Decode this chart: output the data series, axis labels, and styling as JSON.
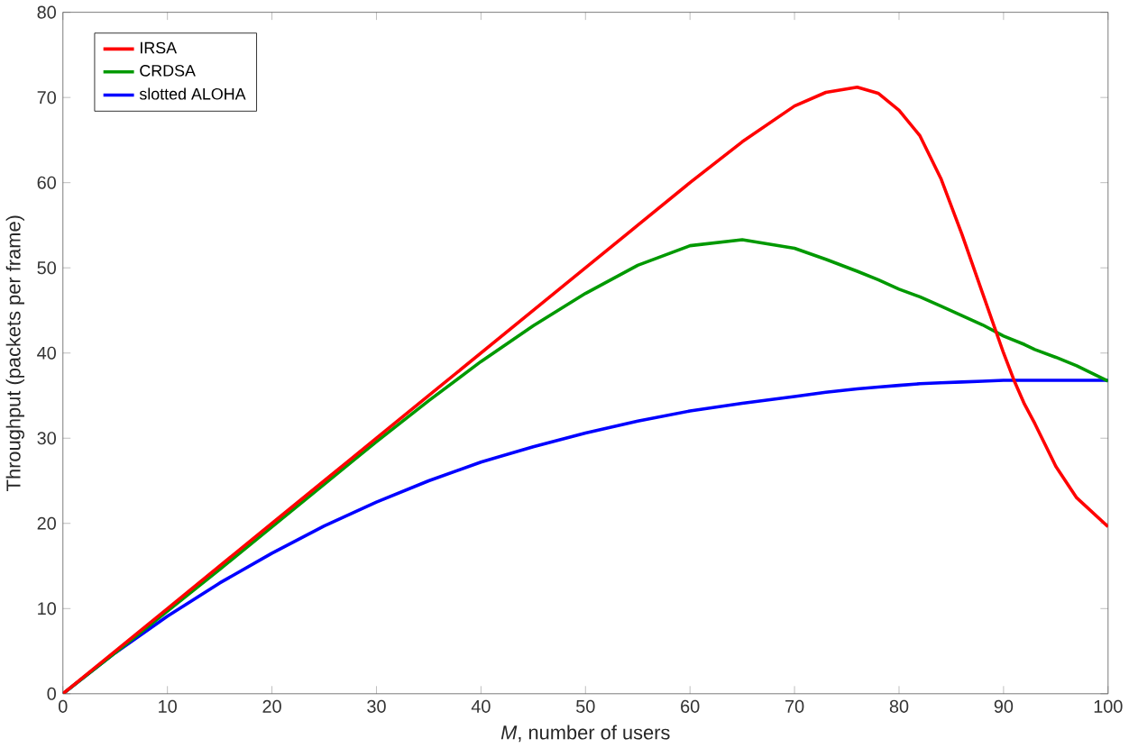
{
  "chart_data": {
    "type": "line",
    "xlabel": "*M*, number of users",
    "ylabel": "Throughput (packets per frame)",
    "x": [
      0,
      5,
      10,
      15,
      20,
      25,
      30,
      35,
      40,
      45,
      50,
      55,
      60,
      65,
      70,
      73,
      76,
      78,
      80,
      82,
      84,
      86,
      88,
      90,
      91,
      92,
      93,
      95,
      97,
      100
    ],
    "series": [
      {
        "name": "IRSA",
        "color": "#ff0000",
        "values": [
          0,
          5,
          10,
          15,
          20,
          25,
          30,
          35,
          40,
          45,
          50,
          55,
          60,
          64.8,
          69,
          70.6,
          71.2,
          70.5,
          68.5,
          65.5,
          60.5,
          54,
          47,
          40,
          36.8,
          34,
          31.7,
          26.7,
          23,
          19.6
        ]
      },
      {
        "name": "CRDSA",
        "color": "#009900",
        "values": [
          0,
          4.8,
          9.7,
          14.6,
          19.6,
          24.6,
          29.6,
          34.4,
          39,
          43.2,
          47,
          50.3,
          52.6,
          53.3,
          52.3,
          51,
          49.6,
          48.6,
          47.5,
          46.6,
          45.5,
          44.4,
          43.3,
          42,
          41.5,
          41,
          40.4,
          39.5,
          38.5,
          36.7
        ]
      },
      {
        "name": "slotted ALOHA",
        "color": "#0000ff",
        "values": [
          0,
          4.8,
          9.1,
          13,
          16.5,
          19.7,
          22.5,
          25,
          27.2,
          29,
          30.6,
          32,
          33.2,
          34.1,
          34.9,
          35.4,
          35.8,
          36,
          36.2,
          36.4,
          36.5,
          36.6,
          36.7,
          36.8,
          36.8,
          36.8,
          36.8,
          36.8,
          36.8,
          36.8
        ]
      }
    ],
    "xlim": [
      0,
      100
    ],
    "ylim": [
      0,
      80
    ],
    "xticks": [
      0,
      10,
      20,
      30,
      40,
      50,
      60,
      70,
      80,
      90,
      100
    ],
    "yticks": [
      0,
      10,
      20,
      30,
      40,
      50,
      60,
      70,
      80
    ],
    "legend": "top left",
    "grid": false,
    "line_style": "solid",
    "marker": "none"
  }
}
